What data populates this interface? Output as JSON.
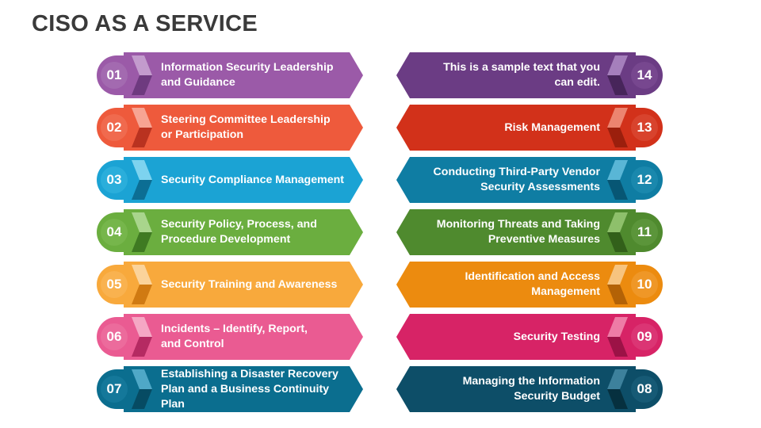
{
  "title": "CISO AS A SERVICE",
  "items": [
    {
      "num": "01",
      "text": "Information Security Leadership\nand Guidance",
      "color": "#9B5AA8",
      "dark": "#6E3A7F",
      "light": "#C39BCD",
      "badge": "#A36AB0"
    },
    {
      "num": "02",
      "text": "Steering Committee Leadership\nor Participation",
      "color": "#EE5A3C",
      "dark": "#B93220",
      "light": "#F7A493",
      "badge": "#F06A4E"
    },
    {
      "num": "03",
      "text": "Security Compliance Management",
      "color": "#1BA3D4",
      "dark": "#0C6E94",
      "light": "#7DD3EF",
      "badge": "#2AAEDB"
    },
    {
      "num": "04",
      "text": "Security Policy, Process, and\nProcedure Development",
      "color": "#6BAE3F",
      "dark": "#3F7A22",
      "light": "#A9D58C",
      "badge": "#76B64B"
    },
    {
      "num": "05",
      "text": "Security Training and Awareness",
      "color": "#F8A93C",
      "dark": "#D07A12",
      "light": "#FBD39A",
      "badge": "#F9B24F"
    },
    {
      "num": "06",
      "text": "Incidents – Identify, Report,\nand Control",
      "color": "#EA5B92",
      "dark": "#B52A62",
      "light": "#F5A7C4",
      "badge": "#EC6B9C"
    },
    {
      "num": "07",
      "text": "Establishing a Disaster Recovery\nPlan and a Business Continuity Plan",
      "color": "#0B6E8F",
      "dark": "#064B63",
      "light": "#4FA8C7",
      "badge": "#14789A"
    },
    {
      "num": "08",
      "text": "Managing the Information\nSecurity Budget",
      "color": "#0D4E68",
      "dark": "#06303F",
      "light": "#3D819C",
      "badge": "#165A75"
    },
    {
      "num": "09",
      "text": "Security Testing",
      "color": "#D72366",
      "dark": "#9C1246",
      "light": "#EE7CA6",
      "badge": "#DB3574"
    },
    {
      "num": "10",
      "text": "Identification and Access\nManagement",
      "color": "#EC8B0F",
      "dark": "#B36206",
      "light": "#F7C47F",
      "badge": "#EF9727"
    },
    {
      "num": "11",
      "text": "Monitoring Threats and Taking\nPreventive Measures",
      "color": "#4F8A2E",
      "dark": "#32601A",
      "light": "#8EC06B",
      "badge": "#5B953A"
    },
    {
      "num": "12",
      "text": "Conducting Third-Party Vendor\nSecurity Assessments",
      "color": "#0F7DA3",
      "dark": "#075674",
      "light": "#59B6D6",
      "badge": "#1A88AD"
    },
    {
      "num": "13",
      "text": "Risk Management",
      "color": "#D2311A",
      "dark": "#9B1F0D",
      "light": "#EC8470",
      "badge": "#D8432D"
    },
    {
      "num": "14",
      "text": "This is a sample text that you\ncan edit.",
      "color": "#6B3C84",
      "dark": "#47255A",
      "light": "#A57FBC",
      "badge": "#77478F"
    }
  ]
}
